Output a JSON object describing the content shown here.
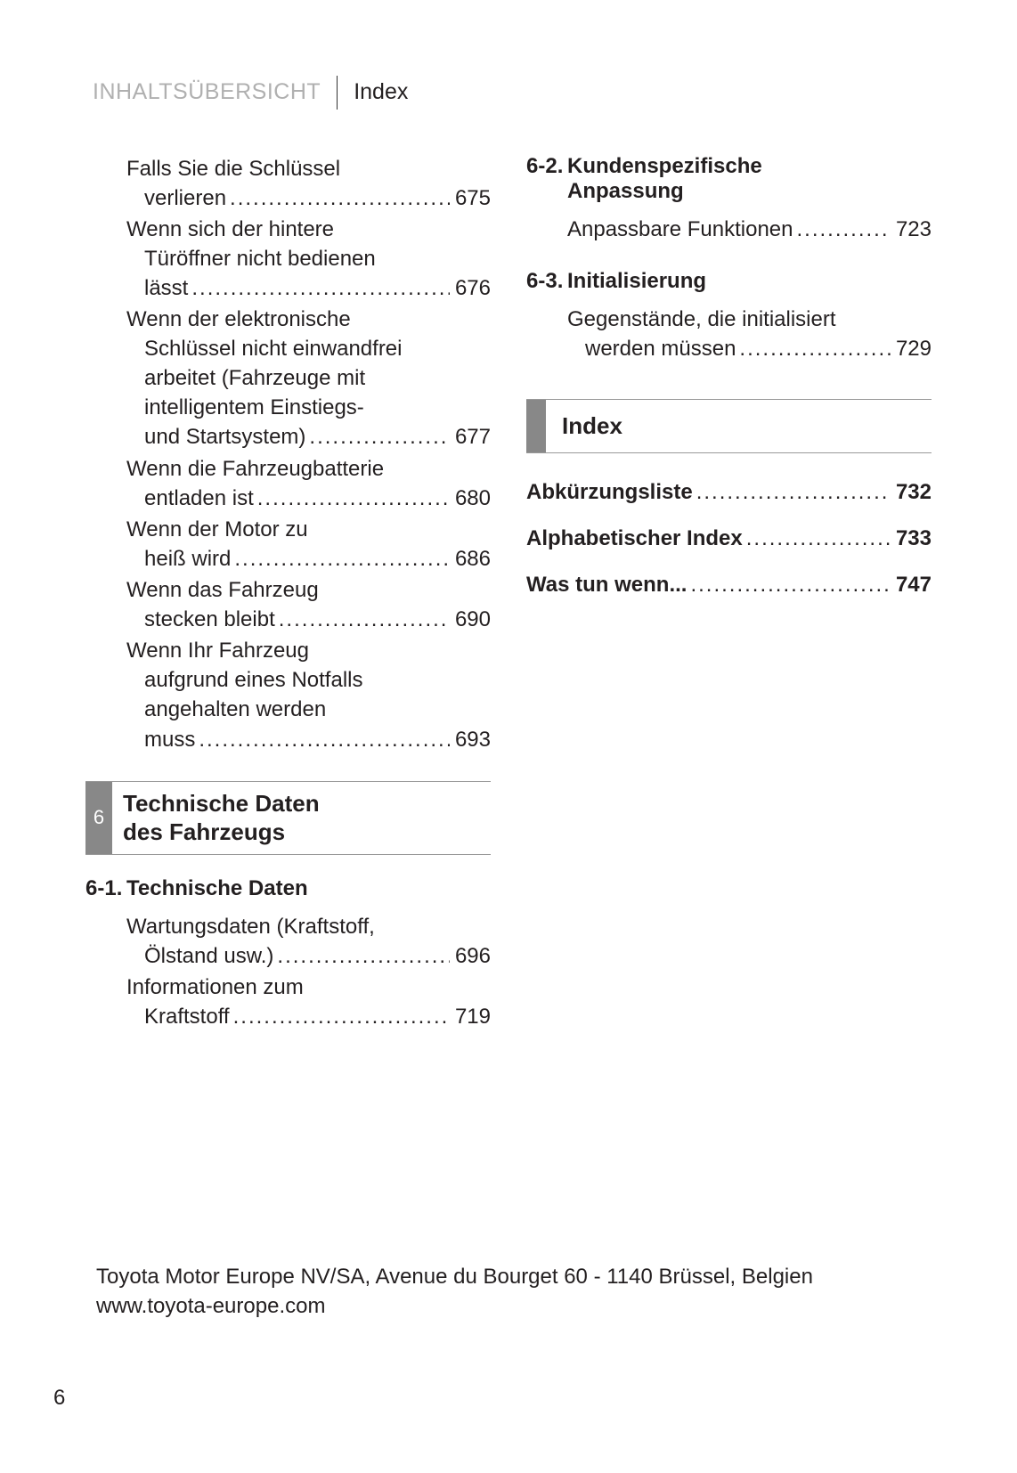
{
  "header": {
    "left": "INHALTSÜBERSICHT",
    "right": "Index"
  },
  "left_col": {
    "entries": [
      {
        "lines": [
          "Falls Sie die Schlüssel"
        ],
        "last": "verlieren",
        "page": "675"
      },
      {
        "lines": [
          "Wenn sich der hintere",
          "Türöffner nicht bedienen"
        ],
        "last": "lässt",
        "page": "676"
      },
      {
        "lines": [
          "Wenn der elektronische",
          "Schlüssel nicht einwandfrei",
          "arbeitet (Fahrzeuge mit",
          "intelligentem Einstiegs-"
        ],
        "last": "und Startsystem)",
        "page": "677"
      },
      {
        "lines": [
          "Wenn die Fahrzeugbatterie"
        ],
        "last": "entladen ist",
        "page": "680"
      },
      {
        "lines": [
          "Wenn der Motor zu"
        ],
        "last": "heiß wird",
        "page": "686"
      },
      {
        "lines": [
          "Wenn das Fahrzeug"
        ],
        "last": "stecken bleibt",
        "page": "690"
      },
      {
        "lines": [
          "Wenn Ihr Fahrzeug",
          "aufgrund eines Notfalls",
          "angehalten werden"
        ],
        "last": "muss",
        "page": "693"
      }
    ],
    "section": {
      "num": "6",
      "title_l1": "Technische Daten",
      "title_l2": "des Fahrzeugs"
    },
    "sub61": {
      "num": "6-1.",
      "title": "Technische Daten"
    },
    "sub61_entries": [
      {
        "lines": [
          "Wartungsdaten (Kraftstoff,"
        ],
        "last": "Ölstand usw.)",
        "page": "696"
      },
      {
        "lines": [
          "Informationen zum"
        ],
        "last": "Kraftstoff",
        "page": "719"
      }
    ]
  },
  "right_col": {
    "sub62": {
      "num": "6-2.",
      "title_l1": "Kundenspezifische",
      "title_l2": "Anpassung"
    },
    "sub62_entries": [
      {
        "lines": [],
        "last": "Anpassbare Funktionen",
        "page": "723"
      }
    ],
    "sub63": {
      "num": "6-3.",
      "title": "Initialisierung"
    },
    "sub63_entries": [
      {
        "lines": [
          "Gegenstände, die initialisiert"
        ],
        "last": "werden müssen",
        "page": "729"
      }
    ],
    "index_title": "Index",
    "index_entries": [
      {
        "text": "Abkürzungsliste",
        "page": "732"
      },
      {
        "text": "Alphabetischer Index",
        "page": "733"
      },
      {
        "text": "Was tun wenn...",
        "page": "747"
      }
    ]
  },
  "footer": {
    "l1": "Toyota Motor Europe NV/SA, Avenue du Bourget 60 - 1140 Brüssel, Belgien",
    "l2": "www.toyota-europe.com"
  },
  "pagenum": "6",
  "dots": "................................................................."
}
